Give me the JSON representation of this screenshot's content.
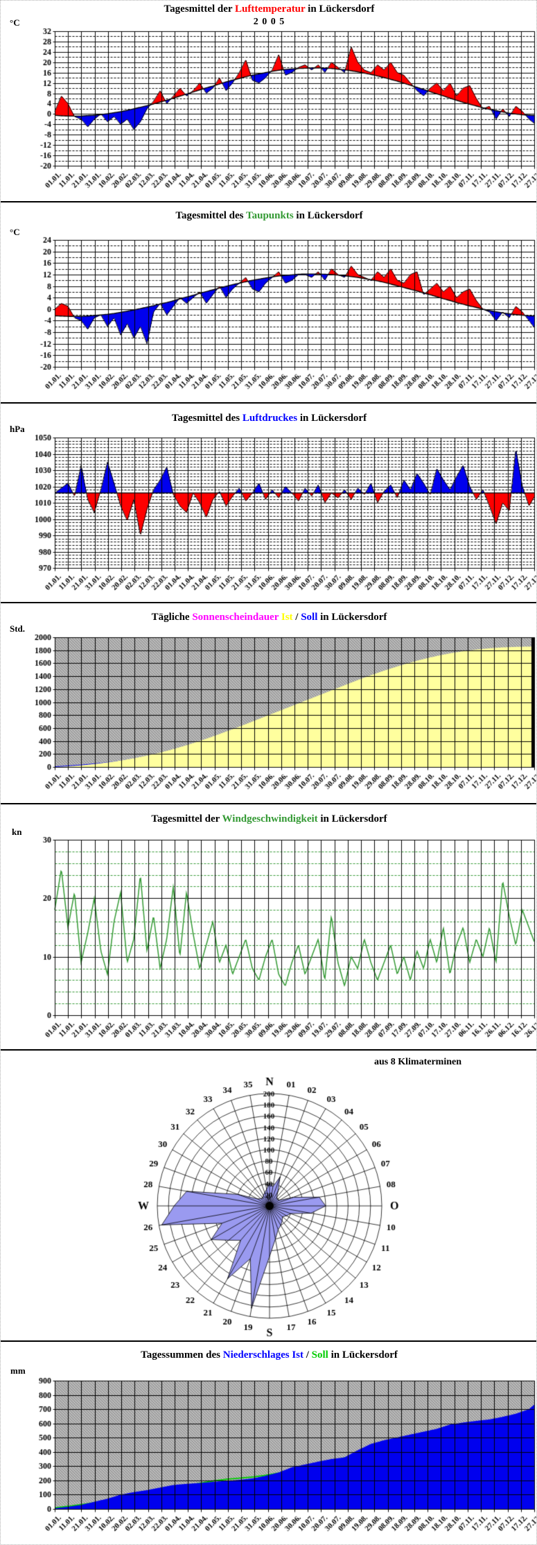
{
  "chart_data": {
    "x_label_sets": {
      "A": [
        "01.01.",
        "11.01.",
        "21.01.",
        "31.01.",
        "10.02.",
        "20.02.",
        "02.03.",
        "12.03.",
        "22.03.",
        "01.04.",
        "11.04.",
        "21.04.",
        "01.05.",
        "11.05.",
        "21.05.",
        "31.05.",
        "10.06.",
        "20.06.",
        "30.06.",
        "10.07.",
        "20.07.",
        "30.07.",
        "09.08.",
        "19.08.",
        "29.08.",
        "08.09.",
        "18.09.",
        "28.09.",
        "08.10.",
        "18.10.",
        "28.10.",
        "07.11.",
        "17.11.",
        "27.11.",
        "07.12.",
        "17.12.",
        "27.12."
      ],
      "B": [
        "01.01.",
        "11.01.",
        "21.01.",
        "31.01.",
        "10.02.",
        "20.02.",
        "01.03.",
        "11.03.",
        "21.03.",
        "31.03.",
        "10.04.",
        "20.04.",
        "30.04.",
        "10.05.",
        "20.05.",
        "30.05.",
        "09.06.",
        "19.06.",
        "29.06.",
        "09.07.",
        "19.07.",
        "29.07.",
        "08.08.",
        "18.08.",
        "28.08.",
        "07.09.",
        "17.09.",
        "27.09.",
        "07.10.",
        "17.10.",
        "27.10.",
        "06.11.",
        "16.11.",
        "26.11.",
        "06.12.",
        "16.12.",
        "26.12."
      ]
    },
    "charts": [
      {
        "id": "temperature",
        "type": "anomaly",
        "title_segments": [
          {
            "text": "Tagesmittel der ",
            "color": "#000000"
          },
          {
            "text": "Lufttemperatur",
            "color": "#ff0000"
          },
          {
            "text": " in Lückersdorf",
            "color": "#000000"
          }
        ],
        "subtitle": "2 0 0 5",
        "unit": "°C",
        "ylim": [
          -20,
          32
        ],
        "y_major": 4,
        "y_minor": 2,
        "x_labels": "A",
        "step_days": 5,
        "above_color": "#ff0000",
        "below_color": "#0000ee",
        "series": {
          "ist": [
            1,
            7,
            4,
            -1,
            -2,
            -5,
            -2,
            0,
            -3,
            -1,
            -4,
            -2,
            -6,
            -3,
            2,
            5,
            9,
            4,
            7,
            10,
            7,
            9,
            12,
            8,
            10,
            14,
            9,
            12,
            16,
            21,
            13,
            12,
            14,
            17,
            23,
            15,
            16,
            18,
            19,
            17,
            19,
            16,
            20,
            18,
            16,
            26,
            20,
            17,
            16,
            19,
            17,
            20,
            16,
            15,
            12,
            9,
            7,
            10,
            12,
            9,
            12,
            7,
            10,
            11,
            6,
            2,
            3,
            -2,
            2,
            -1,
            3,
            1,
            -2,
            -4
          ],
          "soll": [
            -0.5,
            -0.7,
            -0.8,
            -0.8,
            -0.8,
            -0.6,
            -0.5,
            -0.2,
            0.1,
            0.5,
            0.9,
            1.4,
            2.0,
            2.6,
            3.2,
            3.9,
            4.6,
            5.3,
            6.1,
            6.9,
            7.7,
            8.5,
            9.3,
            10.1,
            10.8,
            11.6,
            12.4,
            13.1,
            13.7,
            14.4,
            15.0,
            15.5,
            16.0,
            16.5,
            16.9,
            17.2,
            17.4,
            17.6,
            17.7,
            17.8,
            17.8,
            17.7,
            17.6,
            17.3,
            17.1,
            16.7,
            16.3,
            15.8,
            15.3,
            14.7,
            14.1,
            13.4,
            12.7,
            11.9,
            11.1,
            10.3,
            9.5,
            8.6,
            7.8,
            7.0,
            6.1,
            5.3,
            4.5,
            3.8,
            3.1,
            2.4,
            1.8,
            1.3,
            0.8,
            0.3,
            0.0,
            -0.3,
            -0.5,
            -0.6
          ]
        }
      },
      {
        "id": "dewpoint",
        "type": "anomaly",
        "title_segments": [
          {
            "text": "Tagesmittel des ",
            "color": "#000000"
          },
          {
            "text": "Taupunkts",
            "color": "#339933"
          },
          {
            "text": " in Lückersdorf",
            "color": "#000000"
          }
        ],
        "unit": "°C",
        "ylim": [
          -20,
          24
        ],
        "y_major": 4,
        "y_minor": 2,
        "x_labels": "A",
        "step_days": 5,
        "above_color": "#ff0000",
        "below_color": "#0000ee",
        "series": {
          "ist": [
            0,
            2,
            1,
            -3,
            -4,
            -7,
            -3,
            -2,
            -6,
            -3,
            -9,
            -5,
            -10,
            -6,
            -12,
            -1,
            2,
            -2,
            1,
            4,
            2,
            4,
            6,
            2,
            5,
            8,
            4,
            7,
            9,
            11,
            7,
            6,
            9,
            11,
            13,
            9,
            10,
            12,
            12,
            11,
            13,
            10,
            14,
            12,
            11,
            15,
            12,
            11,
            10,
            13,
            11,
            14,
            10,
            9,
            12,
            13,
            5,
            7,
            9,
            6,
            8,
            4,
            6,
            7,
            3,
            0,
            -1,
            -4,
            -1,
            -3,
            1,
            -1,
            -4,
            -7
          ],
          "soll": [
            -2.3,
            -2.4,
            -2.5,
            -2.5,
            -2.5,
            -2.4,
            -2.2,
            -2.0,
            -1.8,
            -1.5,
            -1.1,
            -0.7,
            -0.3,
            0.2,
            0.7,
            1.2,
            1.8,
            2.3,
            2.9,
            3.6,
            4.2,
            4.8,
            5.5,
            6.1,
            6.7,
            7.3,
            7.9,
            8.5,
            9.0,
            9.5,
            10.0,
            10.4,
            10.8,
            11.2,
            11.5,
            11.7,
            11.9,
            12.1,
            12.2,
            12.2,
            12.2,
            12.1,
            12.0,
            11.8,
            11.6,
            11.3,
            11.0,
            10.6,
            10.2,
            9.8,
            9.3,
            8.7,
            8.1,
            7.5,
            6.9,
            6.3,
            5.6,
            5.0,
            4.3,
            3.6,
            3.0,
            2.3,
            1.7,
            1.1,
            0.6,
            0.0,
            -0.5,
            -0.9,
            -1.3,
            -1.6,
            -1.9,
            -2.1,
            -2.3,
            -2.4
          ]
        }
      },
      {
        "id": "pressure",
        "type": "anomaly",
        "title_segments": [
          {
            "text": "Tagesmittel des ",
            "color": "#000000"
          },
          {
            "text": "Luftdruckes",
            "color": "#0000ff"
          },
          {
            "text": " in Lückersdorf",
            "color": "#000000"
          }
        ],
        "unit": "hPa",
        "ylim": [
          970,
          1050
        ],
        "y_major": 10,
        "y_minor": 2,
        "x_labels": "A",
        "step_days": 5,
        "above_color": "#0000ee",
        "below_color": "#ff0000",
        "series": {
          "ist": [
            1016,
            1019,
            1022,
            1014,
            1033,
            1012,
            1004,
            1018,
            1035,
            1022,
            1008,
            999,
            1012,
            990,
            1006,
            1018,
            1024,
            1032,
            1015,
            1008,
            1004,
            1016,
            1010,
            1001,
            1012,
            1017,
            1008,
            1014,
            1019,
            1011,
            1016,
            1022,
            1012,
            1018,
            1013,
            1020,
            1016,
            1011,
            1019,
            1014,
            1021,
            1010,
            1016,
            1013,
            1018,
            1012,
            1019,
            1015,
            1022,
            1010,
            1017,
            1021,
            1013,
            1024,
            1018,
            1028,
            1022,
            1015,
            1031,
            1024,
            1018,
            1026,
            1033,
            1020,
            1012,
            1018,
            1008,
            997,
            1010,
            1005,
            1043,
            1020,
            1008,
            1015
          ],
          "soll": 1016
        }
      },
      {
        "id": "sunshine",
        "type": "cumulative",
        "title_segments": [
          {
            "text": "Tägliche ",
            "color": "#000000"
          },
          {
            "text": "Sonnenscheindauer",
            "color": "#ff00ff"
          },
          {
            "text": " ",
            "color": "#000000"
          },
          {
            "text": "Ist",
            "color": "#ffff00"
          },
          {
            "text": " / ",
            "color": "#000000"
          },
          {
            "text": "Soll",
            "color": "#0000ff"
          },
          {
            "text": " in Lückersdorf",
            "color": "#000000"
          }
        ],
        "unit": "Std.",
        "ylim": [
          0,
          2000
        ],
        "y_major": 200,
        "x_labels": "A",
        "step_days": 10,
        "fill_color": "#ffff9e",
        "soll_color": "#0000ff",
        "right_bar": true,
        "series": {
          "ist": [
            0,
            10,
            25,
            45,
            70,
            100,
            135,
            175,
            220,
            275,
            335,
            400,
            470,
            545,
            620,
            700,
            780,
            860,
            940,
            1020,
            1100,
            1180,
            1260,
            1340,
            1415,
            1485,
            1550,
            1610,
            1665,
            1712,
            1752,
            1785,
            1810,
            1830,
            1844,
            1852,
            1856,
            1858
          ],
          "soll": [
            0,
            12,
            26,
            43,
            64,
            90,
            122,
            160,
            204,
            254,
            310,
            372,
            440,
            512,
            588,
            666,
            746,
            826,
            906,
            984,
            1060,
            1133,
            1202,
            1267,
            1327,
            1382,
            1431,
            1474,
            1511,
            1542,
            1567,
            1587,
            1602,
            1613,
            1621,
            1627,
            1631,
            1633
          ]
        }
      },
      {
        "id": "windspeed",
        "type": "line",
        "title_segments": [
          {
            "text": "Tagesmittel der ",
            "color": "#000000"
          },
          {
            "text": "Windgeschwindigkeit",
            "color": "#339933"
          },
          {
            "text": " in Lückersdorf",
            "color": "#000000"
          }
        ],
        "unit": "kn",
        "ylim": [
          0,
          30
        ],
        "y_major": 10,
        "y_minor": 2,
        "minor_color": "#339933",
        "line_color": "#339933",
        "x_labels": "B",
        "step_days": 5,
        "series": {
          "ist": [
            18,
            25,
            15,
            21,
            9,
            14,
            20,
            11,
            7,
            16,
            21,
            9,
            13,
            24,
            11,
            17,
            8,
            13,
            22,
            10,
            21,
            14,
            8,
            12,
            16,
            9,
            12,
            7,
            10,
            13,
            8,
            6,
            10,
            13,
            7,
            5,
            9,
            12,
            7,
            10,
            13,
            6,
            17,
            9,
            5,
            10,
            8,
            13,
            9,
            6,
            9,
            12,
            7,
            10,
            6,
            11,
            8,
            13,
            9,
            15,
            7,
            12,
            15,
            9,
            13,
            10,
            15,
            9,
            23,
            17,
            12,
            18,
            15,
            12
          ]
        }
      },
      {
        "id": "windrose",
        "type": "windrose",
        "title": "aus 8 Klimaterminen",
        "compass": [
          "N",
          "O",
          "S",
          "W"
        ],
        "ring_max": 200,
        "ring_step": 20,
        "fill_color": "#9a9af0",
        "values": [
          35,
          55,
          30,
          20,
          18,
          20,
          45,
          90,
          100,
          75,
          40,
          35,
          30,
          35,
          40,
          45,
          60,
          90,
          185,
          100,
          150,
          80,
          95,
          120,
          90,
          195,
          170,
          150,
          60,
          25,
          20,
          18,
          22,
          25,
          30,
          40
        ]
      },
      {
        "id": "precipitation",
        "type": "cumulative",
        "title_segments": [
          {
            "text": "Tagessummen des ",
            "color": "#000000"
          },
          {
            "text": "Niederschlages Ist",
            "color": "#0000ff"
          },
          {
            "text": " / ",
            "color": "#000000"
          },
          {
            "text": "Soll",
            "color": "#00cc00"
          },
          {
            "text": " in Lückersdorf",
            "color": "#000000"
          }
        ],
        "unit": "mm",
        "ylim": [
          0,
          900
        ],
        "y_major": 100,
        "x_labels": "A",
        "step_days": 10,
        "fill_color": "#0000ee",
        "soll_color": "#00cc00",
        "right_bar": false,
        "series": {
          "ist": [
            5,
            15,
            28,
            50,
            72,
            100,
            118,
            132,
            150,
            168,
            176,
            182,
            190,
            196,
            204,
            214,
            232,
            256,
            292,
            312,
            332,
            350,
            362,
            412,
            456,
            482,
            502,
            522,
            542,
            562,
            592,
            606,
            618,
            628,
            646,
            668,
            700,
            780
          ],
          "soll": [
            8,
            18,
            30,
            44,
            60,
            78,
            96,
            114,
            132,
            150,
            166,
            180,
            196,
            208,
            216,
            224,
            236,
            252,
            272,
            294,
            316,
            338,
            358,
            378,
            398,
            418,
            436,
            452,
            467,
            481,
            494,
            506,
            517,
            527,
            536,
            544,
            551,
            557
          ]
        }
      }
    ]
  }
}
